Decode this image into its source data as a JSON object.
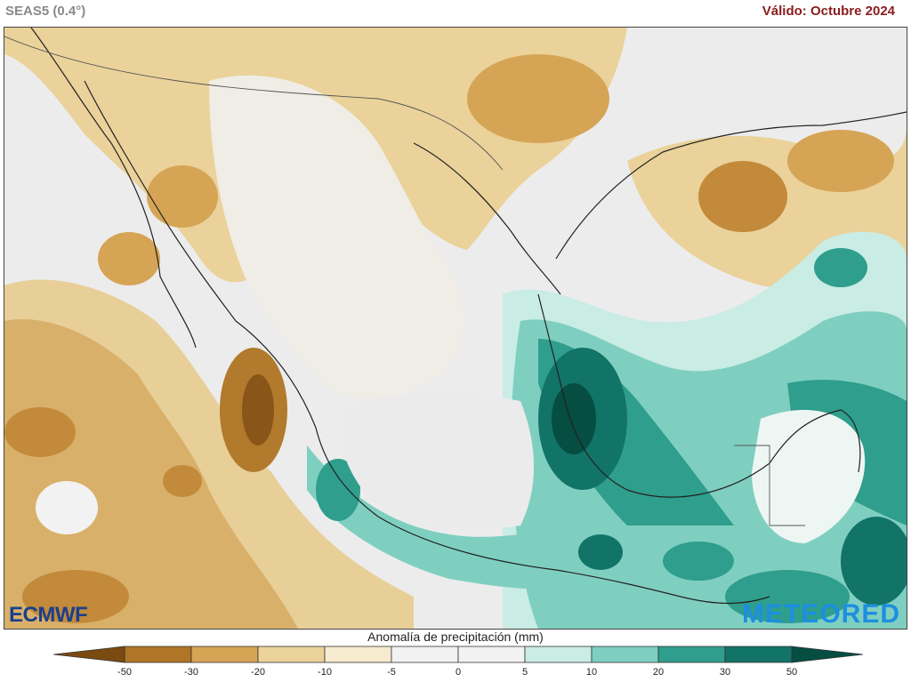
{
  "header": {
    "model": "SEAS5 (0.4°)",
    "valid": "Válido: Octubre 2024"
  },
  "logos": {
    "left": "ECMWF",
    "right": "METEORED"
  },
  "legend": {
    "title": "Anomalía de precipitación (mm)",
    "ticks": [
      "-50",
      "-30",
      "-20",
      "-10",
      "-5",
      "0",
      "5",
      "10",
      "20",
      "30",
      "50"
    ],
    "colors": [
      "#7a4a10",
      "#b07526",
      "#d6a455",
      "#ead29a",
      "#f6ebcf",
      "#f2f2f2",
      "#f2f2f2",
      "#c9ece4",
      "#7fcfc0",
      "#2f9e8c",
      "#127367",
      "#064d42"
    ]
  },
  "map": {
    "region": "México y Centroamérica",
    "variable": "precipitation-anomaly"
  }
}
